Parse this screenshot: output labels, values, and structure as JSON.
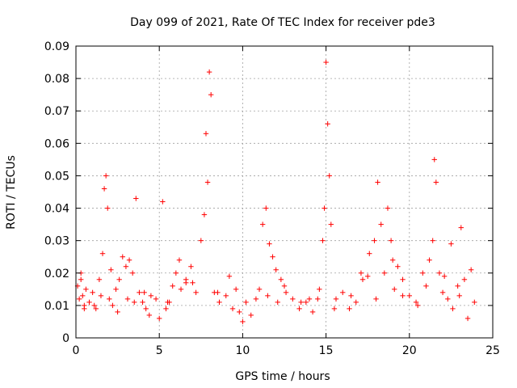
{
  "chart_data": {
    "type": "scatter",
    "title": "Day 099 of 2021, Rate Of TEC Index for receiver pde3",
    "xlabel": "GPS time / hours",
    "ylabel": "ROTI / TECUs",
    "xlim": [
      0,
      25
    ],
    "ylim": [
      0,
      0.09
    ],
    "xticks": [
      0,
      5,
      10,
      15,
      20,
      25
    ],
    "yticks": [
      0,
      0.01,
      0.02,
      0.03,
      0.04,
      0.05,
      0.06,
      0.07,
      0.08,
      0.09
    ],
    "xtick_labels": [
      "0",
      "5",
      "10",
      "15",
      "20",
      "25"
    ],
    "ytick_labels": [
      "0",
      "0.01",
      "0.02",
      "0.03",
      "0.04",
      "0.05",
      "0.06",
      "0.07",
      "0.08",
      "0.09"
    ],
    "grid": true,
    "marker": "+",
    "color": "#ff0000",
    "series": [
      {
        "name": "ROTI",
        "x": [
          0.1,
          0.2,
          0.3,
          0.4,
          0.5,
          0.6,
          0.8,
          1.0,
          1.2,
          1.4,
          1.6,
          1.7,
          1.8,
          1.9,
          2.0,
          2.2,
          2.4,
          2.6,
          2.8,
          3.0,
          3.2,
          3.4,
          3.6,
          3.8,
          4.0,
          4.2,
          4.5,
          4.8,
          5.0,
          5.2,
          5.4,
          5.6,
          5.8,
          6.0,
          6.3,
          6.6,
          6.9,
          7.2,
          7.5,
          7.7,
          7.8,
          7.9,
          8.0,
          8.1,
          8.3,
          8.6,
          9.0,
          9.4,
          9.8,
          10.2,
          10.5,
          10.8,
          11.0,
          11.2,
          11.4,
          11.6,
          11.8,
          12.0,
          12.3,
          12.6,
          13.0,
          13.4,
          13.8,
          14.2,
          14.5,
          14.8,
          14.9,
          15.0,
          15.1,
          15.2,
          15.3,
          15.6,
          16.0,
          16.4,
          16.8,
          17.2,
          17.6,
          17.9,
          18.1,
          18.3,
          18.5,
          18.7,
          18.9,
          19.1,
          19.3,
          19.6,
          20.0,
          20.4,
          20.8,
          21.2,
          21.4,
          21.5,
          21.6,
          21.8,
          22.0,
          22.3,
          22.6,
          22.9,
          23.1,
          23.3,
          23.5,
          23.7,
          23.9,
          0.5,
          1.1,
          1.5,
          2.5,
          3.1,
          3.5,
          4.4,
          5.5,
          6.2,
          7.0,
          8.5,
          9.2,
          10.0,
          11.5,
          12.5,
          13.5,
          14.0,
          15.5,
          16.5,
          17.5,
          18.0,
          19.0,
          20.5,
          21.0,
          22.5,
          23.0,
          0.3,
          2.1,
          4.1,
          6.6,
          9.6,
          12.1,
          14.6,
          17.1,
          19.6,
          22.1
        ],
        "y": [
          0.016,
          0.012,
          0.02,
          0.013,
          0.01,
          0.015,
          0.011,
          0.014,
          0.009,
          0.018,
          0.026,
          0.046,
          0.05,
          0.04,
          0.012,
          0.01,
          0.015,
          0.018,
          0.025,
          0.022,
          0.024,
          0.02,
          0.043,
          0.014,
          0.011,
          0.009,
          0.013,
          0.012,
          0.006,
          0.042,
          0.009,
          0.011,
          0.016,
          0.02,
          0.015,
          0.018,
          0.022,
          0.014,
          0.03,
          0.038,
          0.063,
          0.048,
          0.082,
          0.075,
          0.014,
          0.011,
          0.013,
          0.009,
          0.008,
          0.011,
          0.007,
          0.012,
          0.015,
          0.035,
          0.04,
          0.029,
          0.025,
          0.021,
          0.018,
          0.014,
          0.012,
          0.009,
          0.011,
          0.008,
          0.012,
          0.03,
          0.04,
          0.085,
          0.066,
          0.05,
          0.035,
          0.012,
          0.014,
          0.009,
          0.011,
          0.018,
          0.026,
          0.03,
          0.048,
          0.035,
          0.02,
          0.04,
          0.03,
          0.015,
          0.022,
          0.018,
          0.013,
          0.011,
          0.02,
          0.024,
          0.03,
          0.055,
          0.048,
          0.02,
          0.014,
          0.012,
          0.009,
          0.016,
          0.034,
          0.018,
          0.006,
          0.021,
          0.011,
          0.009,
          0.01,
          0.013,
          0.008,
          0.012,
          0.011,
          0.007,
          0.011,
          0.024,
          0.017,
          0.014,
          0.019,
          0.005,
          0.013,
          0.016,
          0.011,
          0.012,
          0.009,
          0.013,
          0.019,
          0.012,
          0.024,
          0.01,
          0.016,
          0.029,
          0.013,
          0.018,
          0.021,
          0.014,
          0.017,
          0.015,
          0.011,
          0.015,
          0.02,
          0.013,
          0.019
        ],
        "y_max": [
          0.016,
          0.012,
          0.02,
          0.013,
          0.01,
          0.015,
          0.011,
          0.014,
          0.009,
          0.018,
          0.026,
          0.046,
          0.05,
          0.04,
          0.012,
          0.01,
          0.015,
          0.018,
          0.025,
          0.022,
          0.024,
          0.02,
          0.043,
          0.014,
          0.011,
          0.009,
          0.013,
          0.012,
          0.006,
          0.042,
          0.009,
          0.011,
          0.016,
          0.02,
          0.015,
          0.018,
          0.022,
          0.014,
          0.03,
          0.038,
          0.063,
          0.048,
          0.082,
          0.075,
          0.014,
          0.011,
          0.013,
          0.009,
          0.008,
          0.011,
          0.007,
          0.012,
          0.015,
          0.035,
          0.04,
          0.029,
          0.025,
          0.021,
          0.018,
          0.014,
          0.012,
          0.009,
          0.011,
          0.008,
          0.012,
          0.03,
          0.04,
          0.085,
          0.066,
          0.05,
          0.035,
          0.012,
          0.014,
          0.009,
          0.011,
          0.018,
          0.026,
          0.03,
          0.048,
          0.035,
          0.02,
          0.04,
          0.03,
          0.015,
          0.022,
          0.018,
          0.013,
          0.011,
          0.02,
          0.024,
          0.03,
          0.055,
          0.048,
          0.02,
          0.014,
          0.012,
          0.009,
          0.016,
          0.034,
          0.018,
          0.006,
          0.021,
          0.011,
          0.009,
          0.01,
          0.013,
          0.008,
          0.012,
          0.011,
          0.007,
          0.011,
          0.024,
          0.017,
          0.014,
          0.019,
          0.005,
          0.013,
          0.016,
          0.011,
          0.012,
          0.009,
          0.013,
          0.019,
          0.012,
          0.024,
          0.01,
          0.016,
          0.029,
          0.013,
          0.018,
          0.021,
          0.014,
          0.017,
          0.015,
          0.011,
          0.015,
          0.02,
          0.013,
          0.019
        ]
      }
    ]
  }
}
